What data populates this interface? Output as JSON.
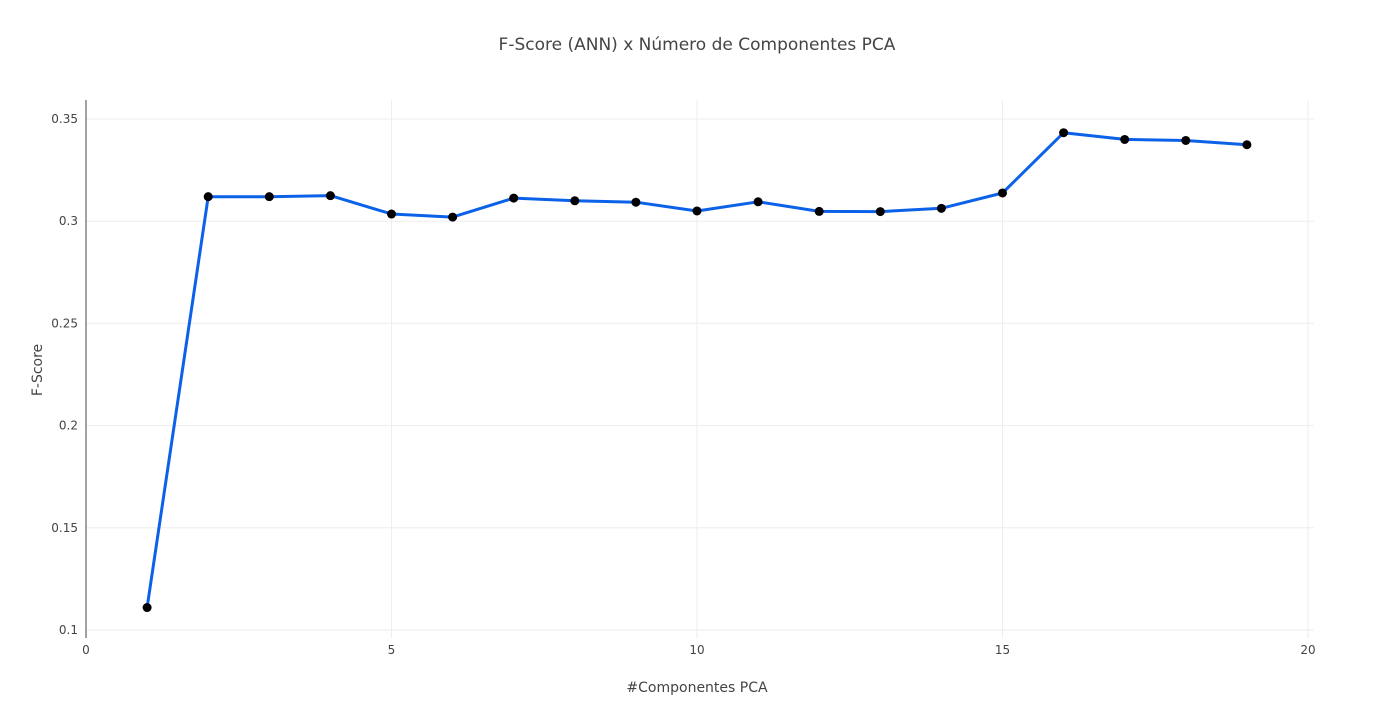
{
  "chart_data": {
    "type": "line",
    "title": "F-Score (ANN) x Número de Componentes PCA",
    "xlabel": "#Componentes PCA",
    "ylabel": "F-Score",
    "xlim": [
      0,
      20
    ],
    "ylim": [
      0.1,
      0.35
    ],
    "xticks": [
      0,
      5,
      10,
      15,
      20
    ],
    "yticks": [
      0.1,
      0.15,
      0.2,
      0.25,
      0.3,
      0.35
    ],
    "xtick_labels": [
      "0",
      "5",
      "10",
      "15",
      "20"
    ],
    "ytick_labels": [
      "0.1",
      "0.15",
      "0.2",
      "0.25",
      "0.3",
      "0.35"
    ],
    "grid": true,
    "line_color": "#0b62e8",
    "marker_color": "#000000",
    "x": [
      1,
      2,
      3,
      4,
      5,
      6,
      7,
      8,
      9,
      10,
      11,
      12,
      13,
      14,
      15,
      16,
      17,
      18,
      19
    ],
    "y": [
      0.111,
      0.312,
      0.312,
      0.3125,
      0.3035,
      0.302,
      0.3113,
      0.31,
      0.3093,
      0.305,
      0.3095,
      0.3048,
      0.3047,
      0.3063,
      0.3138,
      0.3433,
      0.34,
      0.3395,
      0.3374
    ]
  }
}
